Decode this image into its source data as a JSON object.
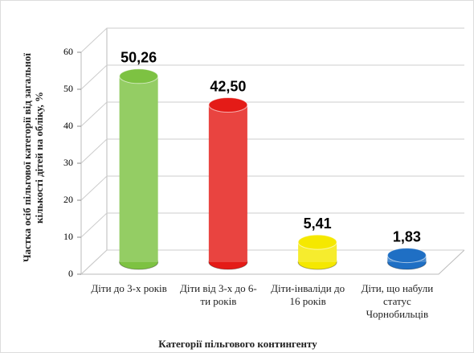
{
  "chart_data": {
    "type": "bar3d",
    "x_label": "Категорії пільгового контингенту",
    "y_label": "Частка осіб пільгової категорії від загальної кількості дітей на обліку, %",
    "categories": [
      "Діти до 3-х років",
      "Діти від 3-х до 6-ти років",
      "Діти-інваліди до 16 років",
      "Діти, що набули статус Чорнобильців"
    ],
    "values": [
      50.26,
      42.5,
      5.41,
      1.83
    ],
    "value_labels": [
      "50,26",
      "42,50",
      "5,41",
      "1,83"
    ],
    "colors": [
      "#7dc242",
      "#e41b17",
      "#f5e800",
      "#1f6fc4"
    ],
    "ylim": [
      0,
      60
    ],
    "yticks": [
      0,
      10,
      20,
      30,
      40,
      50,
      60
    ],
    "grid": true
  }
}
